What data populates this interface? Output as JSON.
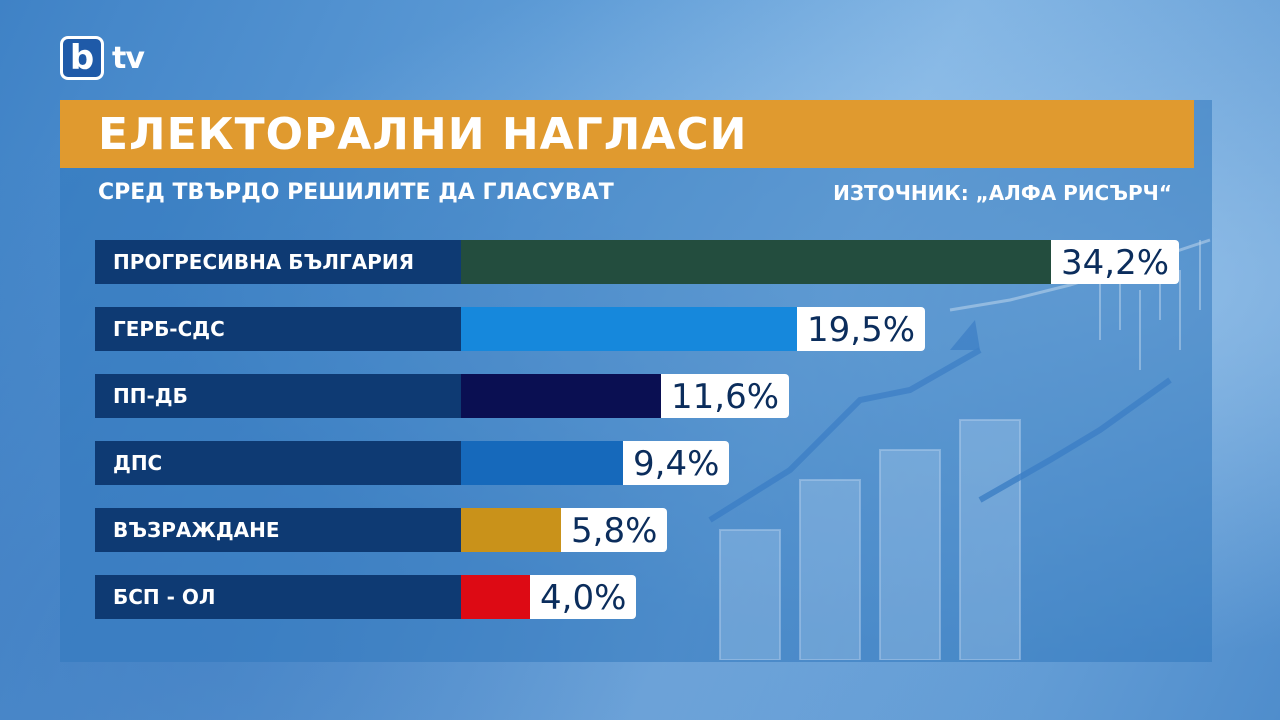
{
  "brand": {
    "logo_b": "b",
    "logo_tv": "tv"
  },
  "header": {
    "title": "ЕЛЕКТОРАЛНИ НАГЛАСИ",
    "subtitle": "СРЕД ТВЪРДО РЕШИЛИТЕ ДА ГЛАСУВАТ",
    "source": "ИЗТОЧНИК: „АЛФА РИСЪРЧ“"
  },
  "colors": {
    "title_bar": "#e09a2f",
    "label_bg": "#0e3a73",
    "value_bg": "#ffffff",
    "value_text": "#0b2d5c"
  },
  "chart_data": {
    "type": "bar",
    "orientation": "horizontal",
    "title": "ЕЛЕКТОРАЛНИ НАГЛАСИ",
    "subtitle": "СРЕД ТВЪРДО РЕШИЛИТЕ ДА ГЛАСУВАТ",
    "unit": "%",
    "categories": [
      "ПРОГРЕСИВНА БЪЛГАРИЯ",
      "ГЕРБ-СДС",
      "ПП-ДБ",
      "ДПС",
      "ВЪЗРАЖДАНЕ",
      "БСП - ОЛ"
    ],
    "values": [
      34.2,
      19.5,
      11.6,
      9.4,
      5.8,
      4.0
    ],
    "value_labels": [
      "34,2%",
      "19,5%",
      "11,6%",
      "9,4%",
      "5,8%",
      "4,0%"
    ],
    "bar_colors": [
      "#234d3e",
      "#1688dc",
      "#0a0f52",
      "#1669bb",
      "#c9921a",
      "#dd0a14"
    ],
    "xlim": [
      0,
      34.2
    ],
    "grid": false,
    "legend": "none"
  }
}
